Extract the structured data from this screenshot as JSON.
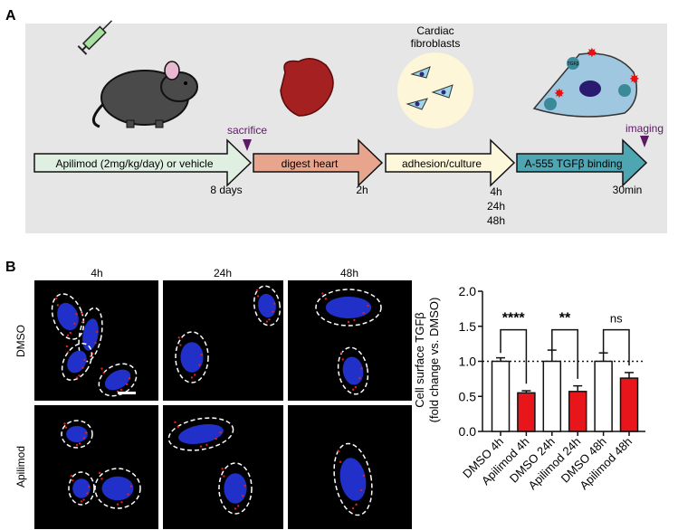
{
  "panel_a": {
    "label": "A",
    "cell_caption_line1": "Cardiac",
    "cell_caption_line2": "fibroblasts",
    "receptor_label": "TGFβ",
    "steps": [
      {
        "label": "Apilimod (2mg/kg/day) or vehicle",
        "duration": [
          "8 days"
        ],
        "color": "#dff0e2"
      },
      {
        "label": "digest heart",
        "duration": [
          "2h"
        ],
        "color": "#e8a58e"
      },
      {
        "label": "adhesion/culture",
        "duration": [
          "4h",
          "24h",
          "48h"
        ],
        "color": "#fdf8dc"
      },
      {
        "label": "A-555 TGFβ binding",
        "duration": [
          "30min"
        ],
        "color": "#4fa6b3"
      }
    ],
    "markers": [
      {
        "label": "sacrifice"
      },
      {
        "label": "imaging"
      }
    ],
    "marker_color": "#5b1a63",
    "background": "#e6e6e6"
  },
  "panel_b": {
    "label": "B",
    "columns": [
      "4h",
      "24h",
      "48h"
    ],
    "rows": [
      "DMSO",
      "Apilimod"
    ]
  },
  "chart_data": {
    "type": "bar",
    "categories": [
      "DMSO 4h",
      "Apilimod 4h",
      "DMSO 24h",
      "Apilimod 24h",
      "DMSO 48h",
      "Apilimod 48h"
    ],
    "values": [
      1.0,
      0.55,
      1.0,
      0.57,
      1.0,
      0.76
    ],
    "errors": [
      0.05,
      0.03,
      0.16,
      0.08,
      0.12,
      0.08
    ],
    "bar_colors": [
      "#ffffff",
      "#e8161b",
      "#ffffff",
      "#e8161b",
      "#ffffff",
      "#e8161b"
    ],
    "ylabel_line1": "Cell surface TGFβ",
    "ylabel_line2": "(fold change vs. DMSO)",
    "ylim": [
      0,
      2.0
    ],
    "yticks": [
      "0.0",
      "0.5",
      "1.0",
      "1.5",
      "2.0"
    ],
    "reference_line": 1.0,
    "significance": [
      {
        "pair": [
          0,
          1
        ],
        "label": "****"
      },
      {
        "pair": [
          2,
          3
        ],
        "label": "**"
      },
      {
        "pair": [
          4,
          5
        ],
        "label": "ns"
      }
    ]
  }
}
